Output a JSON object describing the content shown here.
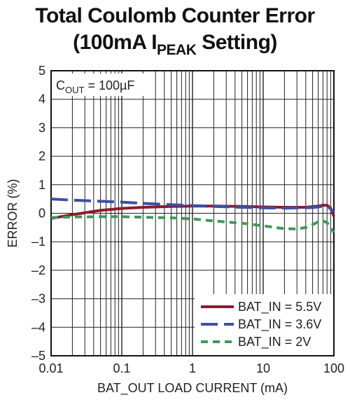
{
  "chart_data": {
    "type": "line",
    "title_line1": "Total Coulomb Counter Error",
    "title_line2_pre": "(100mA I",
    "title_line2_sub": "PEAK",
    "title_line2_post": " Setting)",
    "xlabel": "BAT_OUT LOAD CURRENT (mA)",
    "ylabel": "ERROR (%)",
    "xscale": "log",
    "xlim": [
      0.01,
      100
    ],
    "ylim": [
      -5,
      5
    ],
    "xticks": [
      "0.01",
      "0.1",
      "1",
      "10",
      "100"
    ],
    "yticks": [
      "5",
      "4",
      "3",
      "2",
      "1",
      "0",
      "–1",
      "–2",
      "–3",
      "–4",
      "–5"
    ],
    "grid": true,
    "legend_position": "bottom-right",
    "annotation": {
      "pre": "C",
      "sub": "OUT",
      "post": " = 100µF"
    },
    "series": [
      {
        "name": "BAT_IN = 5.5V",
        "color": "#8b1a2e",
        "dash": "solid",
        "x": [
          0.01,
          0.02,
          0.05,
          0.1,
          0.2,
          0.5,
          1,
          2,
          5,
          10,
          20,
          40,
          60,
          70,
          80,
          90,
          100
        ],
        "y": [
          -0.18,
          -0.05,
          0.1,
          0.17,
          0.21,
          0.24,
          0.25,
          0.25,
          0.24,
          0.22,
          0.21,
          0.21,
          0.25,
          0.28,
          0.28,
          0.18,
          -0.1
        ]
      },
      {
        "name": "BAT_IN = 3.6V",
        "color": "#3a4fa8",
        "dash": "long-dash",
        "x": [
          0.01,
          0.02,
          0.05,
          0.1,
          0.2,
          0.5,
          1,
          2,
          5,
          10,
          20,
          50,
          70,
          85,
          100
        ],
        "y": [
          0.5,
          0.46,
          0.42,
          0.39,
          0.35,
          0.3,
          0.27,
          0.24,
          0.21,
          0.19,
          0.18,
          0.2,
          0.24,
          0.2,
          0.05
        ]
      },
      {
        "name": "BAT_IN = 2V",
        "color": "#3d9a55",
        "dash": "short-dash",
        "x": [
          0.01,
          0.02,
          0.05,
          0.1,
          0.2,
          0.5,
          1,
          2,
          5,
          10,
          15,
          20,
          30,
          40,
          50,
          60,
          70,
          80,
          90,
          100
        ],
        "y": [
          -0.15,
          -0.13,
          -0.12,
          -0.12,
          -0.14,
          -0.16,
          -0.2,
          -0.27,
          -0.35,
          -0.44,
          -0.5,
          -0.54,
          -0.55,
          -0.5,
          -0.4,
          -0.3,
          -0.27,
          -0.33,
          -0.5,
          -0.68
        ]
      }
    ]
  }
}
